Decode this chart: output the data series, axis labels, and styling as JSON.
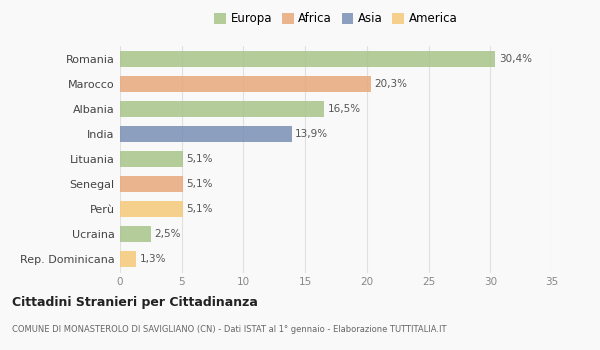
{
  "countries": [
    "Romania",
    "Marocco",
    "Albania",
    "India",
    "Lituania",
    "Senegal",
    "Perù",
    "Ucraina",
    "Rep. Dominicana"
  ],
  "values": [
    30.4,
    20.3,
    16.5,
    13.9,
    5.1,
    5.1,
    5.1,
    2.5,
    1.3
  ],
  "labels": [
    "30,4%",
    "20,3%",
    "16,5%",
    "13,9%",
    "5,1%",
    "5,1%",
    "5,1%",
    "2,5%",
    "1,3%"
  ],
  "colors": [
    "#a8c48a",
    "#e8a87c",
    "#a8c48a",
    "#7a8fb5",
    "#a8c48a",
    "#e8a87c",
    "#f5c97a",
    "#a8c48a",
    "#f5c97a"
  ],
  "legend_labels": [
    "Europa",
    "Africa",
    "Asia",
    "America"
  ],
  "legend_colors": [
    "#a8c48a",
    "#e8a87c",
    "#7a8fb5",
    "#f5c97a"
  ],
  "xlim": [
    0,
    35
  ],
  "xticks": [
    0,
    5,
    10,
    15,
    20,
    25,
    30,
    35
  ],
  "title": "Cittadini Stranieri per Cittadinanza",
  "subtitle": "COMUNE DI MONASTEROLO DI SAVIGLIANO (CN) - Dati ISTAT al 1° gennaio - Elaborazione TUTTITALIA.IT",
  "bg_color": "#f9f9f9",
  "grid_color": "#e0e0e0",
  "bar_height": 0.65
}
